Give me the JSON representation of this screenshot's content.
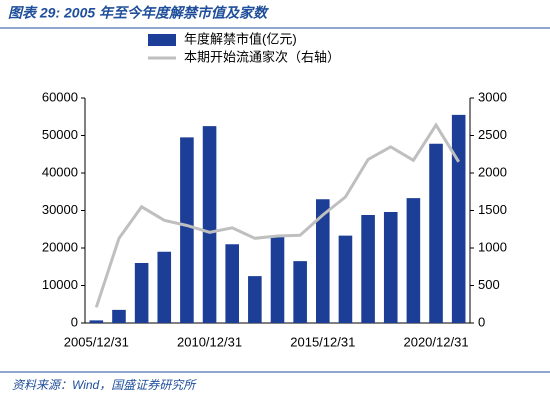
{
  "chart_data": {
    "type": "bar_line",
    "title": "图表 29:  2005 年至今年度解禁市值及家数",
    "source": "资料来源：Wind，国盛证券研究所",
    "categories": [
      "2005/12/31",
      null,
      null,
      null,
      null,
      "2010/12/31",
      null,
      null,
      null,
      null,
      "2015/12/31",
      null,
      null,
      null,
      null,
      "2020/12/31",
      null
    ],
    "series": [
      {
        "name": "年度解禁市值(亿元)",
        "color": "#1c3e97",
        "type": "bar",
        "values": [
          700,
          3500,
          16000,
          19000,
          49500,
          52500,
          21000,
          12500,
          23000,
          16500,
          33000,
          23300,
          28800,
          29600,
          33300,
          47800,
          55500
        ]
      },
      {
        "name": "本期开始流通家次（右轴）",
        "color": "#bfbfbf",
        "type": "line",
        "axis": "y2",
        "values": [
          210,
          1130,
          1550,
          1370,
          1300,
          1210,
          1270,
          1130,
          1160,
          1170,
          1440,
          1680,
          2180,
          2350,
          2170,
          2640,
          2150
        ]
      }
    ],
    "ylim": [
      0,
      60000
    ],
    "yticks": [
      0,
      10000,
      20000,
      30000,
      40000,
      50000,
      60000
    ],
    "y2lim": [
      0,
      3000
    ],
    "y2ticks": [
      0,
      500,
      1000,
      1500,
      2000,
      2500,
      3000
    ],
    "grid": false
  }
}
